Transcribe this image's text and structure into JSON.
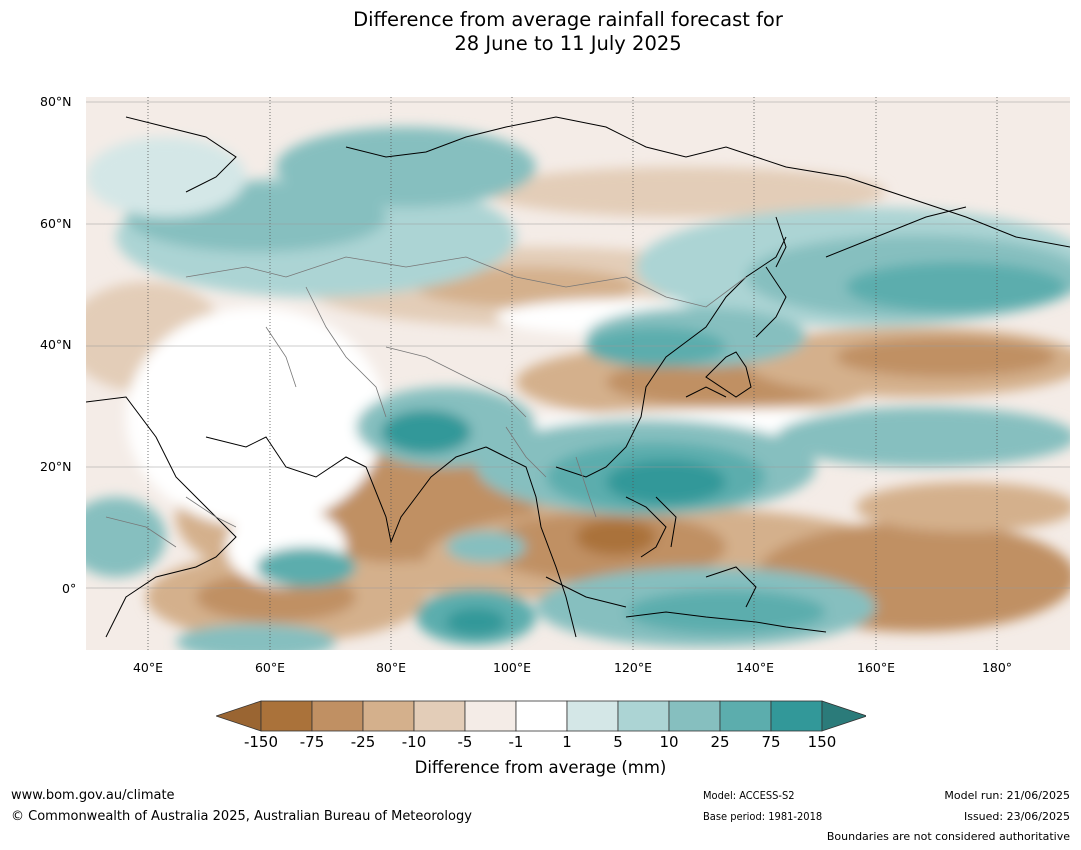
{
  "title_line1": "Difference from average rainfall forecast for",
  "title_line2": "28 June to 11 July 2025",
  "map": {
    "lat_labels": [
      "80°N",
      "60°N",
      "40°N",
      "20°N",
      "0°"
    ],
    "lon_labels": [
      "40°E",
      "60°E",
      "80°E",
      "100°E",
      "120°E",
      "140°E",
      "160°E",
      "180°"
    ]
  },
  "colorbar": {
    "ticks": [
      "-150",
      "-75",
      "-25",
      "-10",
      "-5",
      "-1",
      "1",
      "5",
      "10",
      "25",
      "75",
      "150"
    ],
    "colors": [
      "#9a6532",
      "#aa723a",
      "#c09063",
      "#d4b08c",
      "#e3cdb8",
      "#f4ece7",
      "#ffffff",
      "#d4e7e7",
      "#acd4d4",
      "#86bfbf",
      "#5cadad",
      "#329899",
      "#2b7b7a"
    ],
    "label": "Difference from average (mm)"
  },
  "footer": {
    "url": "www.bom.gov.au/climate",
    "copyright": "© Commonwealth of Australia 2025, Australian Bureau of Meteorology",
    "model": "Model: ACCESS-S2",
    "base_period": "Base period: 1981-2018",
    "model_run": "Model run: 21/06/2025",
    "issued": "Issued: 23/06/2025",
    "disclaimer": "Boundaries are not considered authoritative"
  }
}
